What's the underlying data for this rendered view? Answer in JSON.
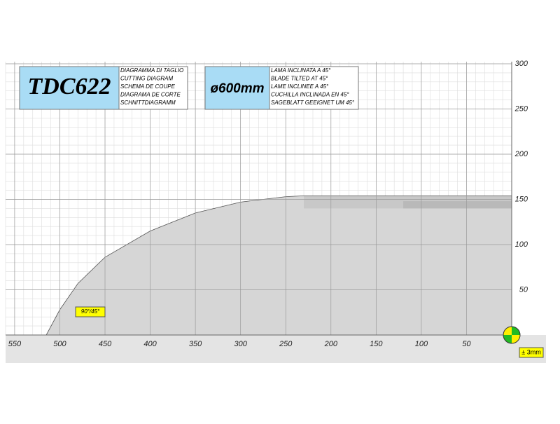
{
  "chart_data": {
    "type": "area",
    "title": "TDC622",
    "title_lines": [
      "DIAGRAMMA DI TAGLIO",
      "CUTTING DIAGRAM",
      "SCHEMA DE COUPE",
      "DIAGRAMA DE CORTE",
      "SCHNITTDIAGRAMM"
    ],
    "subtitle": "ø600mm",
    "subtitle_lines": [
      "LAMA INCLINATA A 45°",
      "BLADE TILTED AT 45°",
      "LAME INCLINEE A 45°",
      "CUCHILLA INCLINADA EN 45°",
      "SAGEBLATT GEEIGNET UM 45°"
    ],
    "annotations": [
      "90°/45°",
      "± 3mm"
    ],
    "x": [
      515,
      500,
      480,
      450,
      400,
      350,
      300,
      250,
      230,
      0
    ],
    "series": [
      {
        "color": "#d6d6d6",
        "values": [
          0,
          28,
          57,
          86,
          115,
          135,
          147,
          153,
          154,
          154
        ]
      }
    ],
    "bands": [
      {
        "xlim": [
          230,
          0
        ],
        "ylim": [
          140,
          154
        ],
        "color": "#c8c8c8"
      },
      {
        "xlim": [
          120,
          0
        ],
        "ylim": [
          140,
          148
        ],
        "color": "#b9b9b9"
      }
    ],
    "xlim": [
      560,
      0
    ],
    "ylim": [
      0,
      300
    ],
    "xticks": [
      550,
      500,
      450,
      400,
      350,
      300,
      250,
      200,
      150,
      100,
      50
    ],
    "yticks": [
      50,
      100,
      150,
      200,
      250,
      300
    ],
    "grid": true,
    "minor_grid": 10
  }
}
